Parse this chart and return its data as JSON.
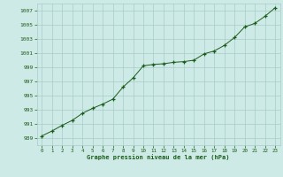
{
  "x": [
    0,
    1,
    2,
    3,
    4,
    5,
    6,
    7,
    8,
    9,
    10,
    11,
    12,
    13,
    14,
    15,
    16,
    17,
    18,
    19,
    20,
    21,
    22,
    23
  ],
  "y": [
    989.3,
    990.0,
    990.8,
    991.5,
    992.5,
    993.2,
    993.8,
    994.5,
    996.2,
    997.5,
    999.2,
    999.4,
    999.5,
    999.7,
    999.8,
    1000.0,
    1000.9,
    1001.3,
    1002.1,
    1003.2,
    1004.7,
    1005.2,
    1006.2,
    1007.4
  ],
  "xlim": [
    -0.5,
    23.5
  ],
  "ylim": [
    988,
    1008
  ],
  "yticks": [
    989,
    991,
    993,
    995,
    997,
    999,
    1001,
    1003,
    1005,
    1007
  ],
  "xticks": [
    0,
    1,
    2,
    3,
    4,
    5,
    6,
    7,
    8,
    9,
    10,
    11,
    12,
    13,
    14,
    15,
    16,
    17,
    18,
    19,
    20,
    21,
    22,
    23
  ],
  "xlabel": "Graphe pression niveau de la mer (hPa)",
  "line_color": "#1a5c1a",
  "marker_color": "#1a5c1a",
  "bg_color": "#ceeae6",
  "grid_color": "#a8ccc8",
  "xlabel_color": "#1a5c1a",
  "tick_label_color": "#1a5c1a"
}
